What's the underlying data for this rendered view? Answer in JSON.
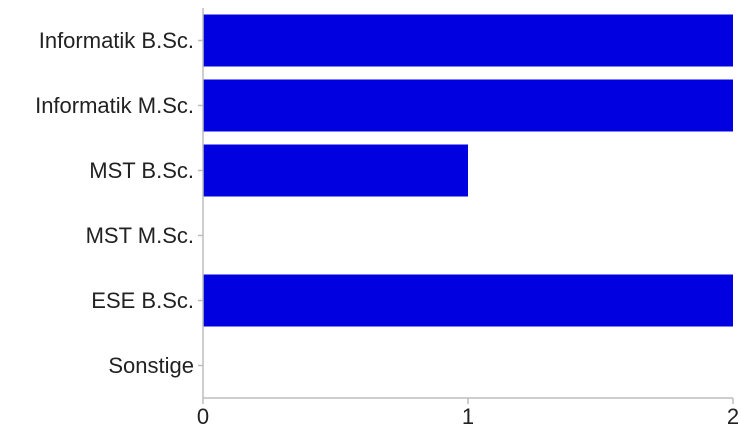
{
  "chart_data": {
    "type": "bar",
    "orientation": "horizontal",
    "categories": [
      "Informatik B.Sc.",
      "Informatik M.Sc.",
      "MST B.Sc.",
      "MST M.Sc.",
      "ESE B.Sc.",
      "Sonstige"
    ],
    "values": [
      2,
      2,
      1,
      0,
      2,
      0
    ],
    "xlim": [
      0,
      2
    ],
    "xticks": [
      "0",
      "1",
      "2"
    ],
    "title": "",
    "xlabel": "",
    "ylabel": "",
    "grid": false,
    "legend": "none",
    "bar_color": "#0000e0",
    "axis_color": "#bdbdbd"
  }
}
